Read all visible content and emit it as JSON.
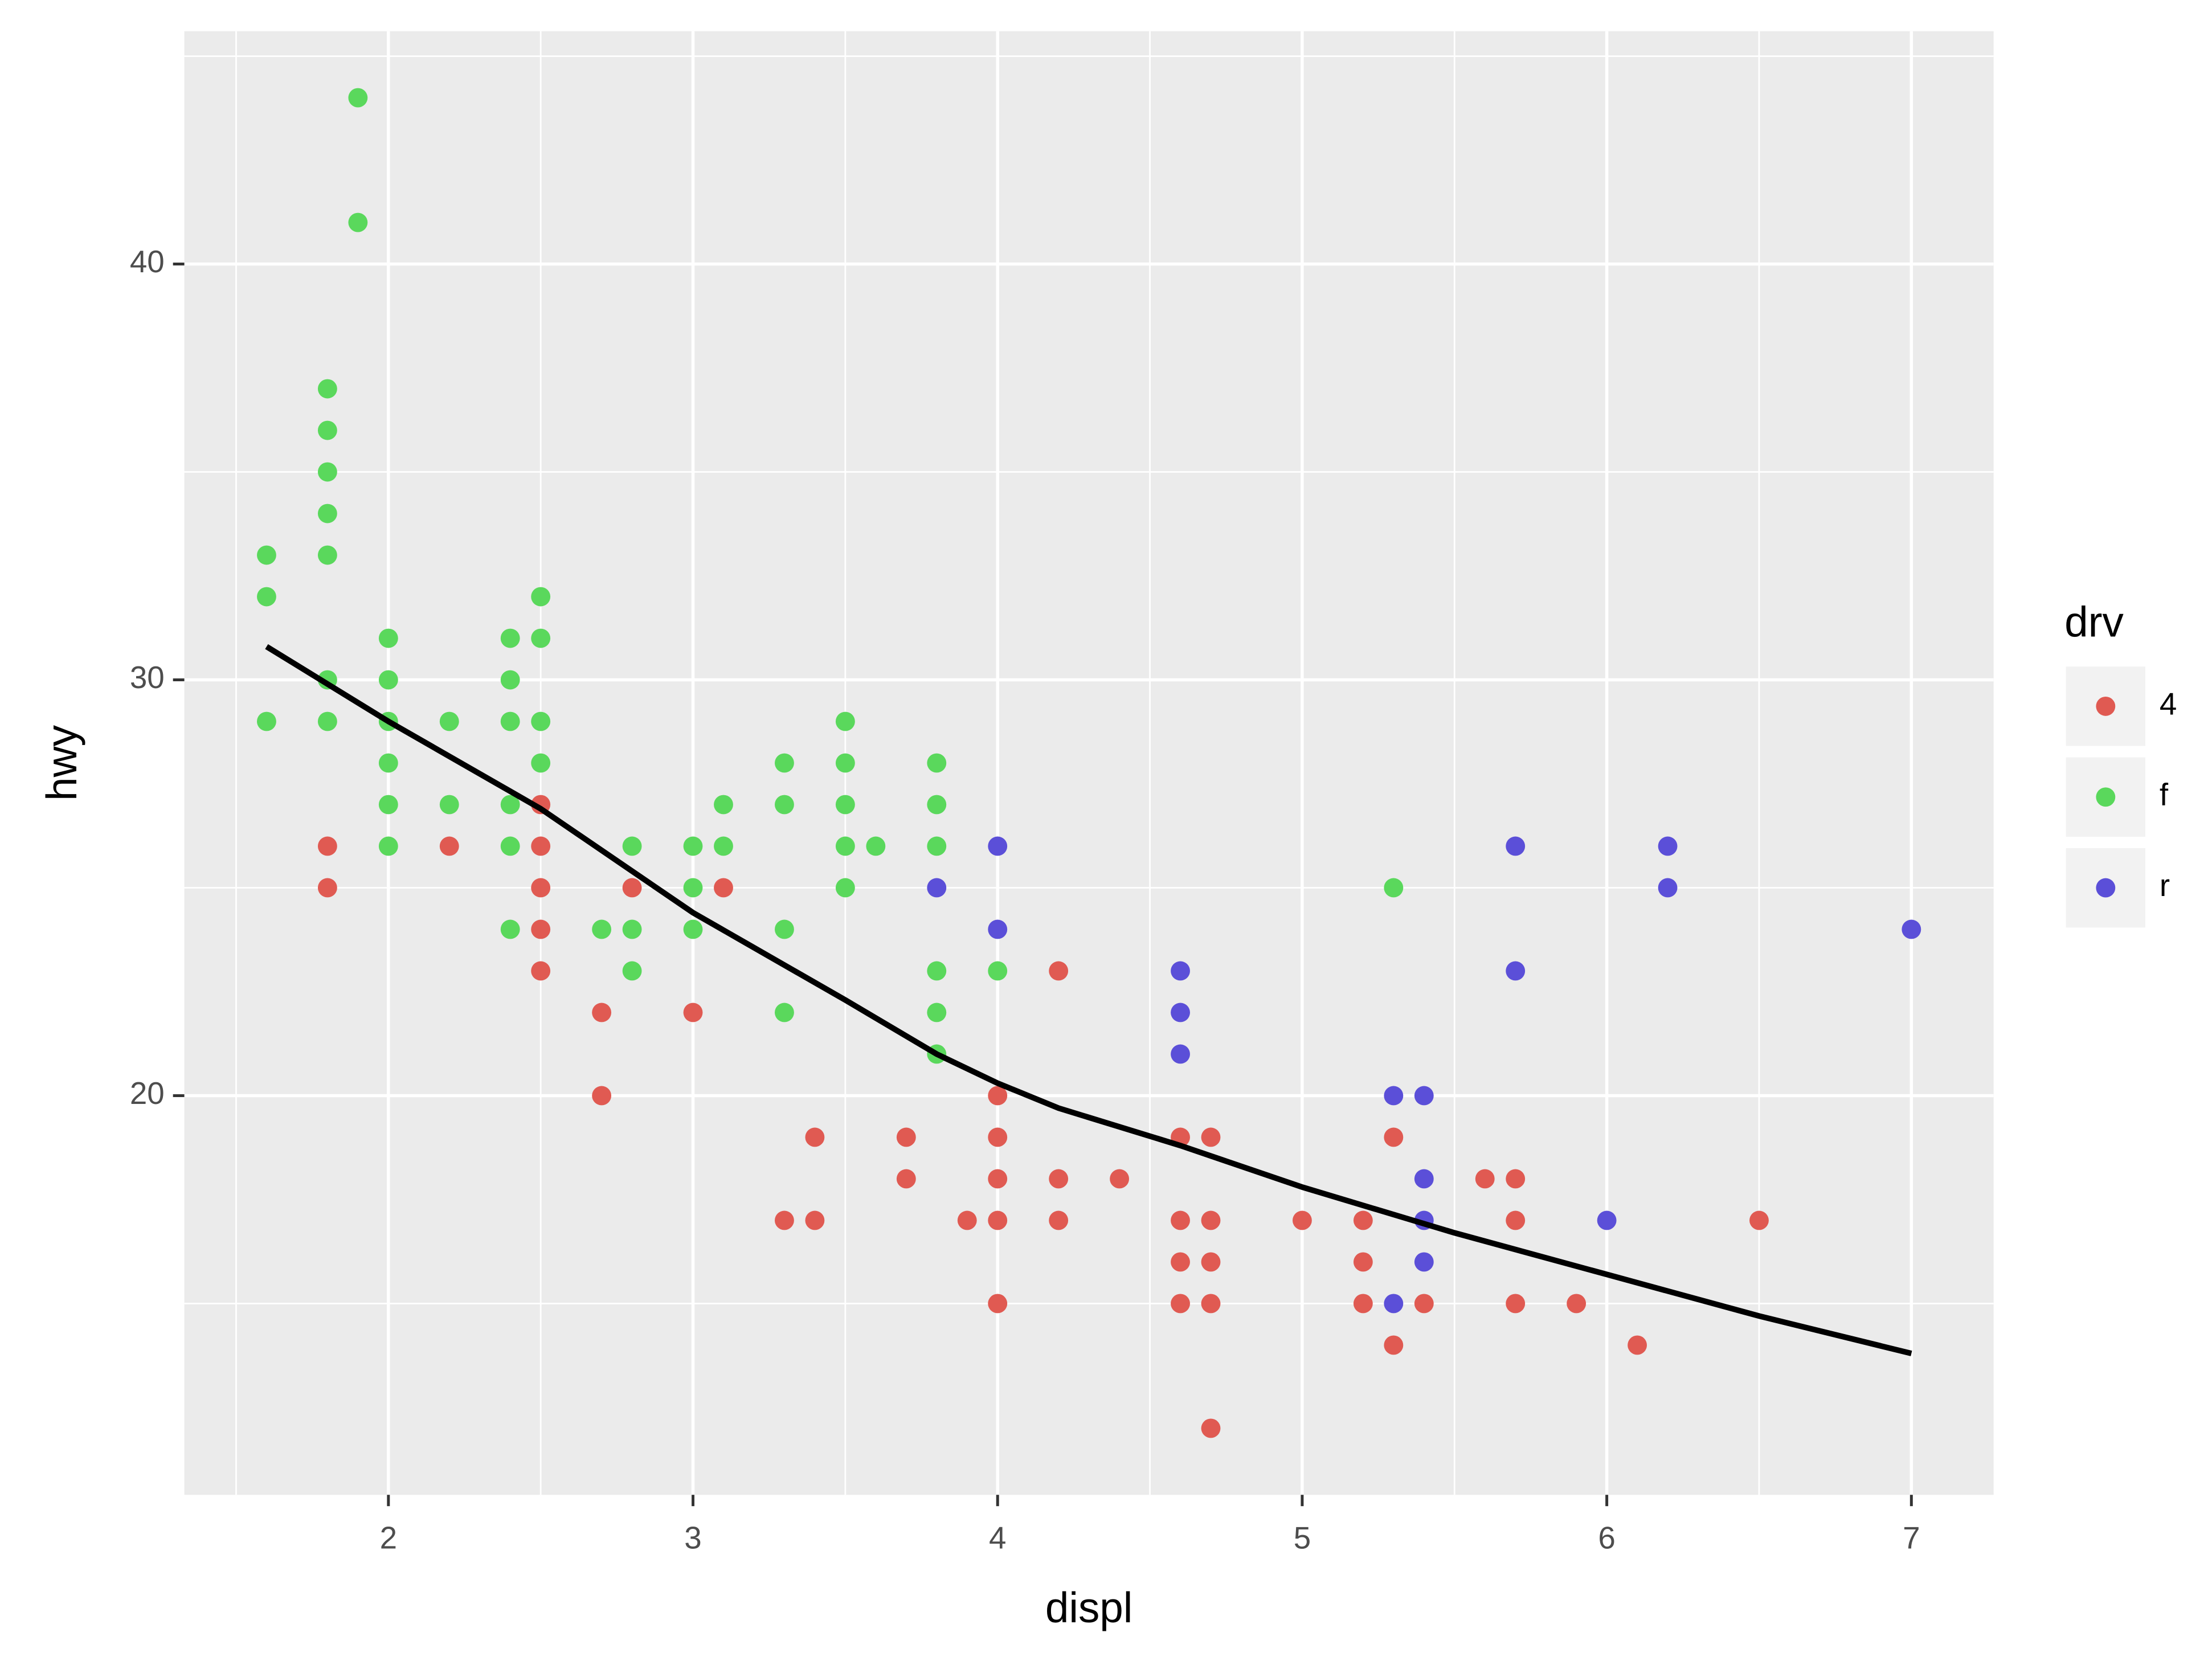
{
  "chart_data": {
    "type": "scatter",
    "x_label": "displ",
    "y_label": "hwy",
    "legend_title": "drv",
    "legend_position": "right",
    "grid": true,
    "xlim": [
      1.33,
      7.27
    ],
    "ylim": [
      10.4,
      45.6
    ],
    "xticks": [
      2,
      3,
      4,
      5,
      6,
      7
    ],
    "yticks": [
      20,
      30,
      40
    ],
    "x_minor_ticks": [
      1.5,
      2.5,
      3.5,
      4.5,
      5.5,
      6.5
    ],
    "y_minor_ticks": [
      15,
      25,
      35,
      45
    ],
    "series": [
      {
        "name": "4",
        "color": "#e05a52",
        "x": [
          1.8,
          1.8,
          2.2,
          2.5,
          2.5,
          2.5,
          2.5,
          2.5,
          2.7,
          2.7,
          2.8,
          3.0,
          3.1,
          3.3,
          3.4,
          3.4,
          3.7,
          3.7,
          3.9,
          4.0,
          4.0,
          4.0,
          4.0,
          4.0,
          4.2,
          4.2,
          4.2,
          4.4,
          4.6,
          4.6,
          4.6,
          4.6,
          4.7,
          4.7,
          4.7,
          4.7,
          4.7,
          5.0,
          5.2,
          5.2,
          5.2,
          5.3,
          5.3,
          5.4,
          5.6,
          5.7,
          5.7,
          5.7,
          5.9,
          6.1,
          6.5
        ],
        "values": [
          26,
          25,
          26,
          27,
          26,
          25,
          24,
          23,
          22,
          20,
          25,
          22,
          25,
          17,
          19,
          17,
          19,
          18,
          17,
          20,
          19,
          18,
          17,
          15,
          23,
          18,
          17,
          18,
          19,
          17,
          16,
          15,
          19,
          17,
          16,
          15,
          12,
          17,
          17,
          16,
          15,
          19,
          14,
          15,
          18,
          18,
          17,
          15,
          15,
          14,
          17
        ]
      },
      {
        "name": "f",
        "color": "#5ad85c",
        "x": [
          1.6,
          1.6,
          1.6,
          1.8,
          1.8,
          1.8,
          1.8,
          1.8,
          1.8,
          1.8,
          1.9,
          1.9,
          2.0,
          2.0,
          2.0,
          2.0,
          2.0,
          2.0,
          2.2,
          2.2,
          2.4,
          2.4,
          2.4,
          2.4,
          2.4,
          2.4,
          2.5,
          2.5,
          2.5,
          2.5,
          2.7,
          2.8,
          2.8,
          2.8,
          3.0,
          3.0,
          3.0,
          3.1,
          3.1,
          3.3,
          3.3,
          3.3,
          3.3,
          3.5,
          3.5,
          3.5,
          3.5,
          3.5,
          3.6,
          3.8,
          3.8,
          3.8,
          3.8,
          3.8,
          3.8,
          4.0,
          5.3
        ],
        "values": [
          33,
          32,
          29,
          37,
          36,
          35,
          34,
          33,
          30,
          29,
          44,
          41,
          31,
          30,
          29,
          28,
          27,
          26,
          29,
          27,
          31,
          30,
          29,
          27,
          26,
          24,
          32,
          31,
          29,
          28,
          24,
          26,
          24,
          23,
          26,
          25,
          24,
          27,
          26,
          28,
          27,
          24,
          22,
          29,
          28,
          27,
          26,
          25,
          26,
          28,
          27,
          26,
          23,
          22,
          21,
          23,
          25
        ]
      },
      {
        "name": "r",
        "color": "#5b4fd8",
        "x": [
          3.8,
          4.0,
          4.0,
          4.6,
          4.6,
          4.6,
          5.3,
          5.3,
          5.4,
          5.4,
          5.4,
          5.4,
          5.7,
          5.7,
          6.0,
          6.2,
          6.2,
          7.0
        ],
        "values": [
          25,
          26,
          24,
          23,
          22,
          21,
          20,
          15,
          20,
          18,
          17,
          16,
          26,
          23,
          17,
          26,
          25,
          24
        ]
      }
    ],
    "trend_line": {
      "color": "#000000",
      "x": [
        1.6,
        2.0,
        2.5,
        3.0,
        3.5,
        3.8,
        4.0,
        4.2,
        4.6,
        5.0,
        5.5,
        6.0,
        6.5,
        7.0
      ],
      "values": [
        30.8,
        29.0,
        26.9,
        24.4,
        22.3,
        21.0,
        20.3,
        19.7,
        18.8,
        17.8,
        16.7,
        15.7,
        14.7,
        13.8
      ]
    }
  }
}
